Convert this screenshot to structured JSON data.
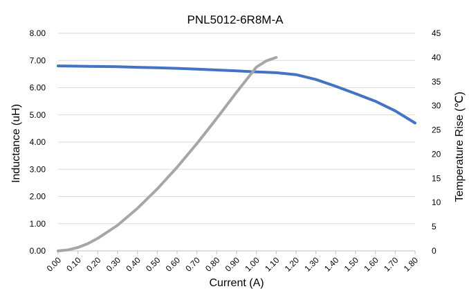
{
  "chart_data": {
    "type": "line",
    "title": "PNL5012-6R8M-A",
    "xlabel": "Current (A)",
    "ylabel": "Inductance (uH)",
    "y2label": "Temperature Rise (℃)",
    "x_tick_labels": [
      "0.00",
      "0.10",
      "0.20",
      "0.30",
      "0.40",
      "0.50",
      "0.60",
      "0.70",
      "0.80",
      "0.90",
      "1.00",
      "1.10",
      "1.20",
      "1.30",
      "1.40",
      "1.50",
      "1.60",
      "1.70",
      "1.80"
    ],
    "y_tick_labels": [
      "0.00",
      "1.00",
      "2.00",
      "3.00",
      "4.00",
      "5.00",
      "6.00",
      "7.00",
      "8.00"
    ],
    "y2_tick_labels": [
      "0",
      "5",
      "10",
      "15",
      "20",
      "25",
      "30",
      "35",
      "40",
      "45"
    ],
    "xlim": [
      0,
      1.8
    ],
    "ylim": [
      0,
      8
    ],
    "y2lim": [
      0,
      45
    ],
    "grid": "horizontal",
    "series": [
      {
        "axis": "left",
        "color": "#4472C4",
        "x": [
          0.0,
          0.1,
          0.2,
          0.3,
          0.4,
          0.5,
          0.6,
          0.7,
          0.8,
          0.9,
          1.0,
          1.1,
          1.2,
          1.3,
          1.4,
          1.5,
          1.6,
          1.7,
          1.8
        ],
        "values": [
          6.8,
          6.79,
          6.78,
          6.77,
          6.75,
          6.73,
          6.71,
          6.68,
          6.65,
          6.62,
          6.58,
          6.55,
          6.48,
          6.3,
          6.05,
          5.78,
          5.5,
          5.15,
          4.7
        ]
      },
      {
        "axis": "right",
        "color": "#A6A6A6",
        "x": [
          0.0,
          0.05,
          0.1,
          0.15,
          0.2,
          0.3,
          0.4,
          0.5,
          0.6,
          0.7,
          0.8,
          0.9,
          1.0,
          1.05,
          1.1
        ],
        "values": [
          0.0,
          0.2,
          0.7,
          1.5,
          2.6,
          5.3,
          8.8,
          12.8,
          17.3,
          22.2,
          27.4,
          32.8,
          38.0,
          39.3,
          40.0
        ]
      }
    ]
  }
}
